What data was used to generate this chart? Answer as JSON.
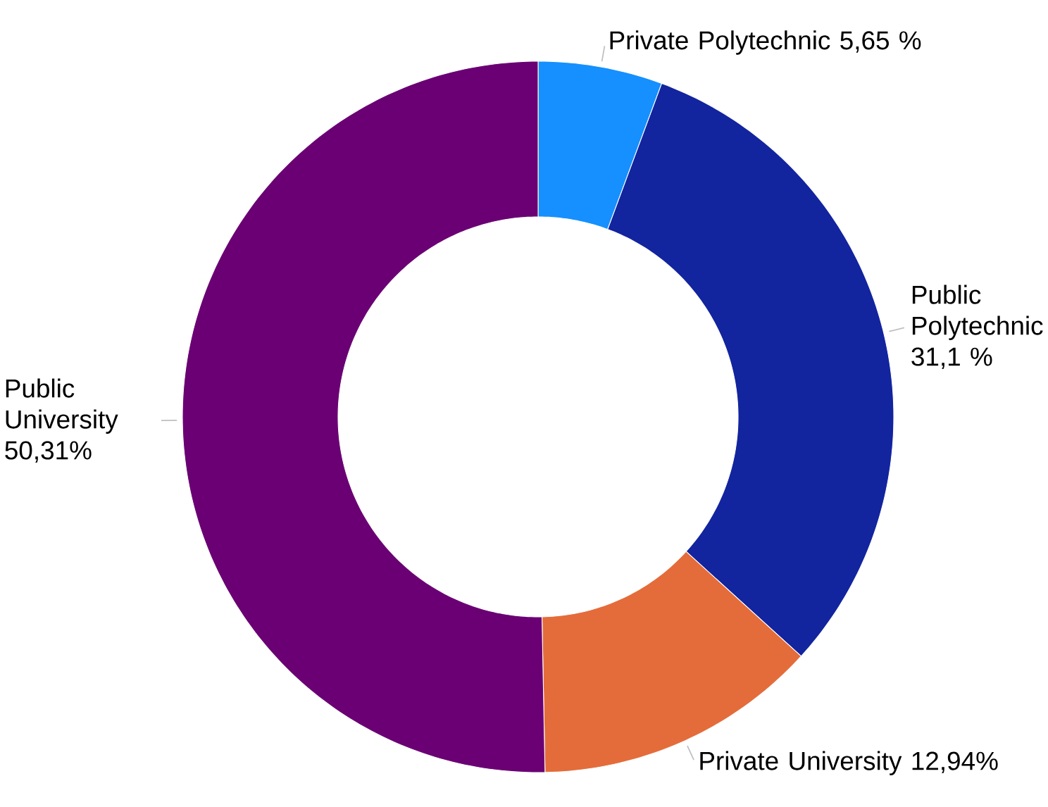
{
  "chart_data": {
    "type": "donut",
    "categories": [
      "Private Polytechnic",
      "Public Polytechnic",
      "Private University",
      "Public University"
    ],
    "values": [
      5.65,
      31.1,
      12.94,
      50.31
    ],
    "value_labels": [
      "5,65 %",
      "31,1 %",
      "12,94%",
      "50,31%"
    ],
    "colors": [
      "#1590fe",
      "#12249e",
      "#e46c3a",
      "#6a0073"
    ]
  }
}
